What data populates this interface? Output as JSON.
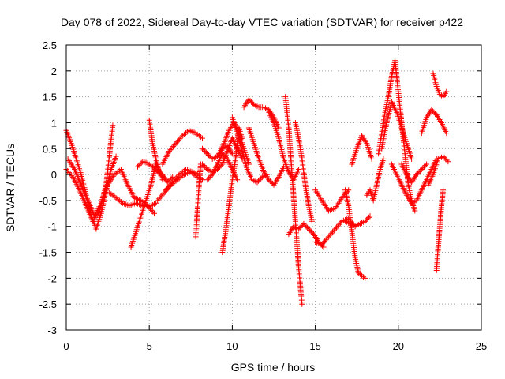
{
  "chart_data": {
    "type": "scatter",
    "title": "Day 078 of 2022, Sidereal Day-to-day VTEC variation (SDTVAR) for receiver p422",
    "xlabel": "GPS time / hours",
    "ylabel": "SDTVAR / TECUs",
    "xlim": [
      0,
      25
    ],
    "ylim": [
      -3,
      2.5
    ],
    "xticks": [
      0,
      5,
      10,
      15,
      20,
      25
    ],
    "xtick_labels": [
      "0",
      "5",
      "10",
      "15",
      "20",
      "25"
    ],
    "yticks": [
      -3,
      -2.5,
      -2,
      -1.5,
      -1,
      -0.5,
      0,
      0.5,
      1,
      1.5,
      2,
      2.5
    ],
    "ytick_labels": [
      "-3",
      "-2.5",
      "-2",
      "-1.5",
      "-1",
      "-0.5",
      "0",
      "0.5",
      "1",
      "1.5",
      "2",
      "2.5"
    ],
    "grid": true,
    "marker": "plus",
    "color": "#ff0000",
    "series": [
      {
        "name": "s1",
        "x": [
          0.0,
          0.3,
          0.6,
          0.9,
          1.2,
          1.5,
          1.8,
          2.1,
          2.4,
          2.7,
          3.0
        ],
        "y": [
          0.85,
          0.6,
          0.3,
          0.0,
          -0.4,
          -0.8,
          -1.05,
          -0.75,
          -0.3,
          0.1,
          0.35
        ]
      },
      {
        "name": "s2",
        "x": [
          0.0,
          0.4,
          0.8,
          1.2,
          1.6,
          2.0,
          2.4,
          2.8
        ],
        "y": [
          0.1,
          -0.05,
          -0.3,
          -0.6,
          -0.9,
          -0.7,
          -0.2,
          0.95
        ]
      },
      {
        "name": "s3",
        "x": [
          0.1,
          0.5,
          0.9,
          1.3,
          1.7,
          2.1,
          2.5,
          2.9,
          3.3,
          3.7,
          4.1,
          4.5,
          4.9,
          5.3
        ],
        "y": [
          0.3,
          0.1,
          -0.2,
          -0.5,
          -0.8,
          -0.55,
          -0.2,
          0.0,
          0.1,
          -0.2,
          -0.45,
          -0.5,
          -0.6,
          -0.75
        ]
      },
      {
        "name": "s4",
        "x": [
          2.6,
          3.0,
          3.4,
          3.8,
          4.2,
          4.6,
          5.0,
          5.4
        ],
        "y": [
          -0.35,
          -0.45,
          -0.55,
          -0.6,
          -0.55,
          -0.6,
          -0.62,
          -0.55
        ]
      },
      {
        "name": "s5",
        "x": [
          3.9,
          4.2,
          4.5,
          4.8,
          5.1,
          5.4,
          5.7
        ],
        "y": [
          -1.4,
          -1.1,
          -0.8,
          -0.5,
          -0.2,
          0.2,
          0.0
        ]
      },
      {
        "name": "s6",
        "x": [
          4.3,
          4.6,
          4.9,
          5.2,
          5.5,
          5.8,
          6.1,
          6.4
        ],
        "y": [
          0.15,
          0.25,
          0.22,
          0.15,
          0.05,
          0.0,
          -0.15,
          -0.05
        ]
      },
      {
        "name": "s7",
        "x": [
          5.0,
          5.2,
          5.4,
          5.6,
          5.8
        ],
        "y": [
          1.05,
          0.6,
          0.3,
          0.05,
          -0.1
        ]
      },
      {
        "name": "s8",
        "x": [
          5.5,
          5.9,
          6.3,
          6.7,
          7.1,
          7.5,
          7.9,
          8.2
        ],
        "y": [
          -0.5,
          -0.35,
          -0.2,
          -0.1,
          0.0,
          0.05,
          -0.05,
          -0.1
        ]
      },
      {
        "name": "s9",
        "x": [
          5.8,
          6.2,
          6.6,
          7.0,
          7.4,
          7.8,
          8.2
        ],
        "y": [
          0.2,
          0.45,
          0.6,
          0.75,
          0.85,
          0.8,
          0.7
        ]
      },
      {
        "name": "s10",
        "x": [
          6.0,
          6.4,
          6.8,
          7.2,
          7.6,
          8.0
        ],
        "y": [
          -0.3,
          -0.15,
          0.0,
          0.1,
          0.05,
          0.0
        ]
      },
      {
        "name": "s11",
        "x": [
          7.8,
          7.9,
          8.0,
          8.1
        ],
        "y": [
          -1.2,
          -0.7,
          -0.2,
          0.2
        ]
      },
      {
        "name": "s12",
        "x": [
          8.2,
          8.5,
          8.8,
          9.1,
          9.4,
          9.7,
          10.0
        ],
        "y": [
          0.5,
          0.4,
          0.3,
          0.35,
          0.5,
          0.55,
          0.4
        ]
      },
      {
        "name": "s13",
        "x": [
          8.2,
          8.5,
          8.8,
          9.1,
          9.4,
          9.7,
          10.0,
          10.3,
          10.6
        ],
        "y": [
          0.2,
          0.1,
          0.05,
          0.1,
          0.2,
          0.45,
          0.7,
          0.5,
          0.3
        ]
      },
      {
        "name": "s14",
        "x": [
          8.5,
          8.8,
          9.1,
          9.4,
          9.7,
          10.0,
          10.3
        ],
        "y": [
          -0.1,
          0.0,
          0.2,
          0.4,
          0.3,
          0.1,
          -0.1
        ]
      },
      {
        "name": "s15",
        "x": [
          9.4,
          9.6,
          9.8,
          10.0,
          10.2,
          10.4,
          10.6
        ],
        "y": [
          -1.5,
          -1.1,
          -0.6,
          -0.1,
          0.3,
          0.9,
          0.7
        ]
      },
      {
        "name": "s16",
        "x": [
          9.2,
          9.5,
          9.8,
          10.1,
          10.4,
          10.7,
          11.0
        ],
        "y": [
          0.4,
          0.6,
          0.85,
          1.0,
          0.8,
          0.5,
          0.2
        ]
      },
      {
        "name": "s17",
        "x": [
          10.0,
          10.3,
          10.6,
          10.9,
          11.2,
          11.5,
          11.8,
          12.1
        ],
        "y": [
          1.1,
          0.8,
          0.45,
          0.1,
          -0.1,
          -0.15,
          -0.05,
          0.0
        ]
      },
      {
        "name": "s18",
        "x": [
          10.7,
          11.0,
          11.3,
          11.6,
          11.9,
          12.2,
          12.5,
          12.8
        ],
        "y": [
          1.3,
          1.45,
          1.35,
          1.3,
          1.3,
          1.25,
          1.1,
          0.9
        ]
      },
      {
        "name": "s19",
        "x": [
          11.0,
          11.3,
          11.6,
          11.9,
          12.2,
          12.5,
          12.8,
          13.1
        ],
        "y": [
          0.9,
          0.6,
          0.3,
          0.05,
          -0.1,
          -0.2,
          -0.05,
          0.15
        ]
      },
      {
        "name": "s20",
        "x": [
          12.2,
          12.5,
          12.8,
          13.1,
          13.4,
          13.7,
          14.0
        ],
        "y": [
          1.2,
          1.0,
          0.7,
          0.3,
          0.05,
          -0.1,
          0.1
        ]
      },
      {
        "name": "s21",
        "x": [
          13.2,
          13.4,
          13.6,
          13.8,
          14.0,
          14.2
        ],
        "y": [
          1.5,
          0.9,
          0.0,
          -0.9,
          -1.8,
          -2.5
        ]
      },
      {
        "name": "s22",
        "x": [
          13.4,
          13.7,
          14.0,
          14.3,
          14.6,
          14.9,
          15.2,
          15.5
        ],
        "y": [
          -1.15,
          -1.0,
          -1.05,
          -0.95,
          -1.05,
          -1.15,
          -1.3,
          -1.4
        ]
      },
      {
        "name": "s23",
        "x": [
          13.8,
          14.0,
          14.2,
          14.4,
          14.6,
          14.8
        ],
        "y": [
          1.0,
          0.7,
          0.3,
          -0.2,
          -0.6,
          -0.9
        ]
      },
      {
        "name": "s24",
        "x": [
          15.0,
          15.4,
          15.8,
          16.2,
          16.6,
          17.0
        ],
        "y": [
          -0.3,
          -0.5,
          -0.7,
          -0.65,
          -0.45,
          -0.3
        ]
      },
      {
        "name": "s25",
        "x": [
          15.0,
          15.4,
          15.8,
          16.2,
          16.6,
          17.0,
          17.4
        ],
        "y": [
          -1.3,
          -1.35,
          -1.2,
          -1.05,
          -0.9,
          -0.85,
          -1.0
        ]
      },
      {
        "name": "s26",
        "x": [
          16.8,
          17.0,
          17.2,
          17.4,
          17.6,
          17.8,
          18.0
        ],
        "y": [
          -0.3,
          -0.6,
          -1.1,
          -1.6,
          -1.9,
          -1.95,
          -2.0
        ]
      },
      {
        "name": "s27",
        "x": [
          16.8,
          17.1,
          17.4,
          17.7,
          18.0,
          18.3
        ],
        "y": [
          -0.9,
          -0.95,
          -1.0,
          -0.95,
          -0.9,
          -0.8
        ]
      },
      {
        "name": "s28",
        "x": [
          17.2,
          17.5,
          17.8,
          18.1,
          18.4
        ],
        "y": [
          0.2,
          0.5,
          0.75,
          0.6,
          0.3
        ]
      },
      {
        "name": "s29",
        "x": [
          18.1,
          18.3,
          18.5,
          18.7,
          18.9,
          19.1
        ],
        "y": [
          -0.4,
          -0.3,
          -0.5,
          -0.2,
          0.1,
          0.3
        ]
      },
      {
        "name": "s30",
        "x": [
          18.8,
          19.0,
          19.2,
          19.4,
          19.6,
          19.8,
          20.0,
          20.2,
          20.4,
          20.6,
          20.8,
          21.0
        ],
        "y": [
          0.4,
          0.8,
          1.2,
          1.5,
          1.9,
          2.2,
          1.6,
          1.0,
          0.4,
          -0.2,
          -0.5,
          -0.7
        ]
      },
      {
        "name": "s31",
        "x": [
          19.0,
          19.3,
          19.6,
          19.9,
          20.2,
          20.5,
          20.8
        ],
        "y": [
          0.5,
          1.0,
          1.4,
          1.2,
          0.9,
          0.6,
          0.3
        ]
      },
      {
        "name": "s32",
        "x": [
          19.6,
          19.9,
          20.2,
          20.5,
          20.8,
          21.1,
          21.4,
          21.7,
          22.0,
          22.3
        ],
        "y": [
          0.2,
          0.0,
          -0.2,
          -0.4,
          -0.55,
          -0.5,
          -0.3,
          -0.1,
          0.1,
          0.3
        ]
      },
      {
        "name": "s33",
        "x": [
          20.2,
          20.5,
          20.8,
          21.1,
          21.4,
          21.7
        ],
        "y": [
          0.2,
          0.0,
          -0.15,
          0.0,
          0.1,
          0.2
        ]
      },
      {
        "name": "s34",
        "x": [
          21.4,
          21.7,
          22.0,
          22.3,
          22.6,
          22.9
        ],
        "y": [
          0.8,
          1.1,
          1.25,
          1.15,
          1.0,
          0.8
        ]
      },
      {
        "name": "s35",
        "x": [
          21.8,
          22.1,
          22.4,
          22.7,
          23.0
        ],
        "y": [
          -0.2,
          0.0,
          0.3,
          0.35,
          0.25
        ]
      },
      {
        "name": "s36",
        "x": [
          22.1,
          22.3,
          22.5,
          22.7,
          22.9
        ],
        "y": [
          1.95,
          1.7,
          1.55,
          1.5,
          1.6
        ]
      },
      {
        "name": "s37",
        "x": [
          22.3,
          22.4,
          22.5,
          22.6,
          22.7
        ],
        "y": [
          -1.85,
          -1.4,
          -1.0,
          -0.6,
          -0.3
        ]
      }
    ]
  }
}
